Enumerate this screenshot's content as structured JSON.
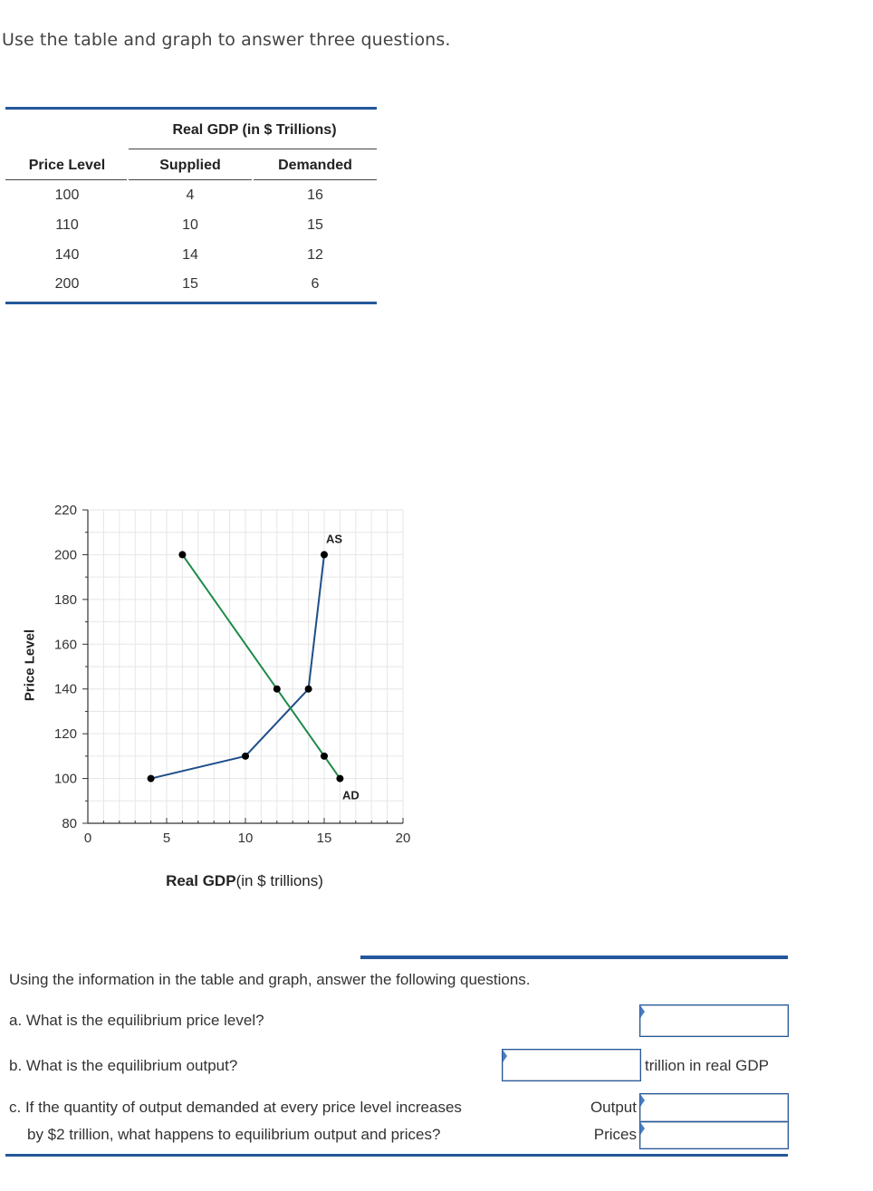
{
  "intro": "Use the table and graph to answer three questions.",
  "table": {
    "group_header": "Real GDP (in $ Trillions)",
    "columns": [
      "Price Level",
      "Supplied",
      "Demanded"
    ],
    "rows": [
      [
        "100",
        "4",
        "16"
      ],
      [
        "110",
        "10",
        "15"
      ],
      [
        "140",
        "14",
        "12"
      ],
      [
        "200",
        "15",
        "6"
      ]
    ]
  },
  "chart_data": {
    "type": "line",
    "title": "",
    "xlabel_bold": "Real GDP",
    "xlabel_rest": "(in $ trillions)",
    "ylabel": "Price Level",
    "xlim": [
      0,
      20
    ],
    "ylim": [
      80,
      220
    ],
    "xticks": [
      0,
      5,
      10,
      15,
      20
    ],
    "yticks": [
      80,
      100,
      120,
      140,
      160,
      180,
      200,
      220
    ],
    "grid": true,
    "series": [
      {
        "name": "AS",
        "color": "#1f4e89",
        "points": [
          [
            4,
            100
          ],
          [
            10,
            110
          ],
          [
            14,
            140
          ],
          [
            15,
            200
          ]
        ]
      },
      {
        "name": "AD",
        "color": "#1e8a4a",
        "points": [
          [
            6,
            200
          ],
          [
            12,
            140
          ],
          [
            15,
            110
          ],
          [
            16,
            100
          ]
        ]
      }
    ]
  },
  "questions": {
    "intro": "Using the information in the table and graph, answer the following questions.",
    "a": "a. What is the equilibrium price level?",
    "b": "b. What is the equilibrium output?",
    "b_suffix": "trillion in real GDP",
    "c_line1": "c. If the quantity of output demanded at every price level increases",
    "c_line2": "by $2 trillion, what happens to equilibrium output and prices?",
    "output_label": "Output",
    "prices_label": "Prices"
  }
}
